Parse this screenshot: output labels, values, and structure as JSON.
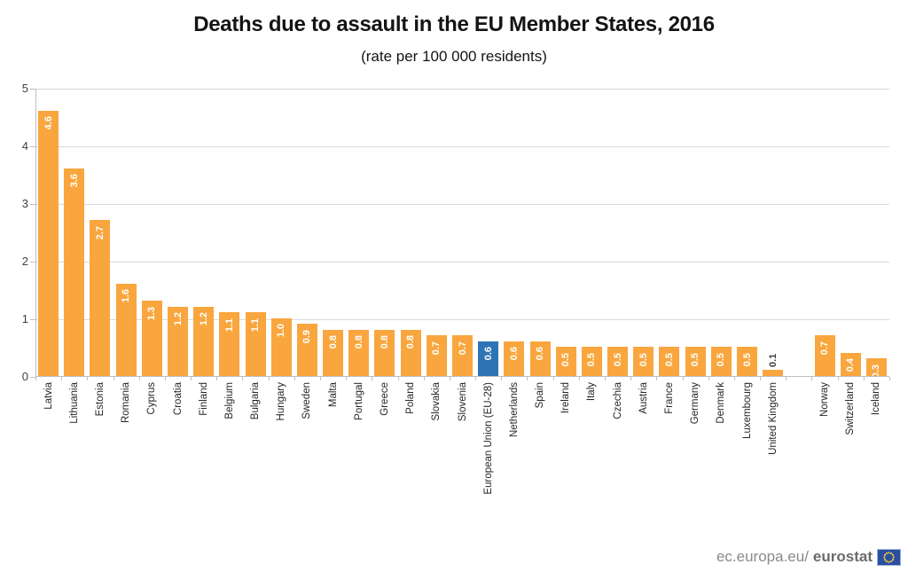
{
  "chart_data": {
    "type": "bar",
    "title": "Deaths due to assault in the EU Member States, 2016",
    "subtitle": "(rate per 100 000 residents)",
    "xlabel": "",
    "ylabel": "",
    "ylim": [
      0,
      5
    ],
    "yticks": [
      0,
      1,
      2,
      3,
      4,
      5
    ],
    "grid": "horizontal",
    "legend": "none",
    "bar_color": "#F9A63E",
    "highlight_color": "#2E74B5",
    "highlight_category": "European Union (EU-28)",
    "value_label_inside_color": "#FFFFFF",
    "value_label_outside_color": "#404040",
    "categories": [
      "Latvia",
      "Lithuania",
      "Estonia",
      "Romania",
      "Cyprus",
      "Croatia",
      "Finland",
      "Belgium",
      "Bulgaria",
      "Hungary",
      "Sweden",
      "Malta",
      "Portugal",
      "Greece",
      "Poland",
      "Slovakia",
      "Slovenia",
      "European Union (EU-28)",
      "Netherlands",
      "Spain",
      "Ireland",
      "Italy",
      "Czechia",
      "Austria",
      "France",
      "Germany",
      "Denmark",
      "Luxembourg",
      "United Kingdom",
      "",
      "Norway",
      "Switzerland",
      "Iceland"
    ],
    "values": [
      4.6,
      3.6,
      2.7,
      1.6,
      1.3,
      1.2,
      1.2,
      1.1,
      1.1,
      1.0,
      0.9,
      0.8,
      0.8,
      0.8,
      0.8,
      0.7,
      0.7,
      0.6,
      0.6,
      0.6,
      0.5,
      0.5,
      0.5,
      0.5,
      0.5,
      0.5,
      0.5,
      0.5,
      0.1,
      null,
      0.7,
      0.4,
      0.3
    ]
  },
  "footer": {
    "url_prefix": "ec.europa.eu/",
    "url_bold": "eurostat",
    "flag_icon": "eu-flag"
  }
}
